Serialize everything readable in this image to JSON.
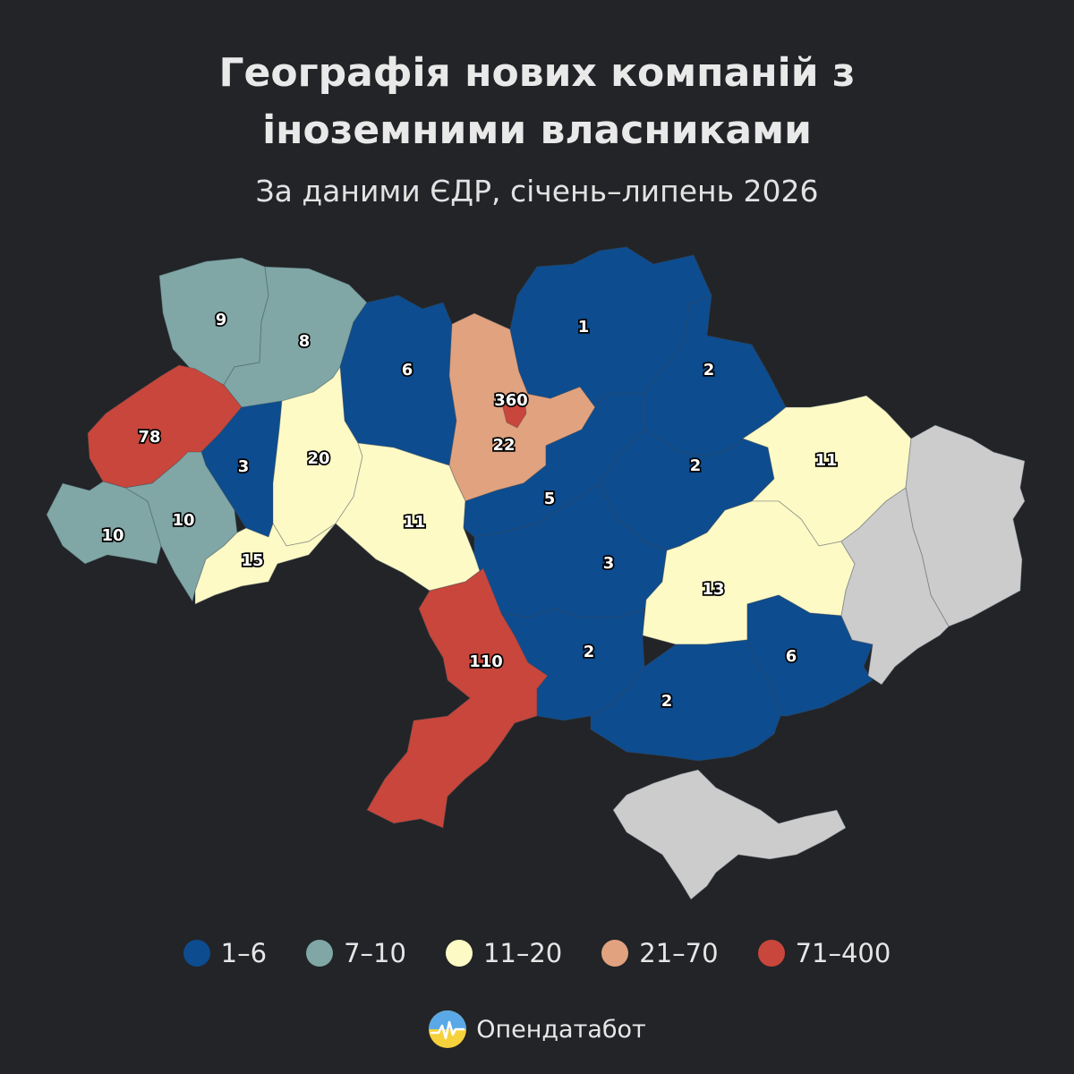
{
  "title_line1": "Географія нових компаній з",
  "title_line2": "іноземними власниками",
  "subtitle": "За даними ЄДР, січень–липень 2026",
  "colors": {
    "c1_6": "#0d4c8f",
    "c7_10": "#80a7a6",
    "c11_20": "#fdfac6",
    "c21_70": "#e1a27f",
    "c71_400": "#c8463b",
    "nodata": "#cccccc"
  },
  "regions": [
    {
      "id": "volyn",
      "value": "9",
      "bin": "c7_10"
    },
    {
      "id": "rivne",
      "value": "8",
      "bin": "c7_10"
    },
    {
      "id": "zhytomyr",
      "value": "6",
      "bin": "c1_6"
    },
    {
      "id": "kyiv-city",
      "value": "360",
      "bin": "c71_400"
    },
    {
      "id": "kyiv-oblast",
      "value": "22",
      "bin": "c21_70"
    },
    {
      "id": "chernihiv",
      "value": "1",
      "bin": "c1_6"
    },
    {
      "id": "sumy",
      "value": "2",
      "bin": "c1_6"
    },
    {
      "id": "lviv",
      "value": "78",
      "bin": "c71_400"
    },
    {
      "id": "ternopil",
      "value": "3",
      "bin": "c1_6"
    },
    {
      "id": "khmelnytskyi",
      "value": "20",
      "bin": "c11_20"
    },
    {
      "id": "vinnytsia",
      "value": "11",
      "bin": "c11_20"
    },
    {
      "id": "cherkasy",
      "value": "5",
      "bin": "c1_6"
    },
    {
      "id": "poltava",
      "value": "2",
      "bin": "c1_6"
    },
    {
      "id": "kharkiv",
      "value": "11",
      "bin": "c11_20"
    },
    {
      "id": "zakarpattia",
      "value": "10",
      "bin": "c7_10"
    },
    {
      "id": "ivano-frankivsk",
      "value": "10",
      "bin": "c7_10"
    },
    {
      "id": "chernivtsi",
      "value": "15",
      "bin": "c11_20"
    },
    {
      "id": "kirovohrad",
      "value": "3",
      "bin": "c1_6"
    },
    {
      "id": "dnipropetrovsk",
      "value": "13",
      "bin": "c11_20"
    },
    {
      "id": "odesa",
      "value": "110",
      "bin": "c71_400"
    },
    {
      "id": "mykolaiv",
      "value": "2",
      "bin": "c1_6"
    },
    {
      "id": "kherson",
      "value": "2",
      "bin": "c1_6"
    },
    {
      "id": "zaporizhzhia",
      "value": "6",
      "bin": "c1_6"
    },
    {
      "id": "luhansk",
      "value": "",
      "bin": "nodata"
    },
    {
      "id": "donetsk",
      "value": "",
      "bin": "nodata"
    },
    {
      "id": "crimea",
      "value": "",
      "bin": "nodata"
    }
  ],
  "legend": [
    {
      "label": "1–6",
      "color": "#0d4c8f"
    },
    {
      "label": "7–10",
      "color": "#80a7a6"
    },
    {
      "label": "11–20",
      "color": "#fdfac6"
    },
    {
      "label": "21–70",
      "color": "#e1a27f"
    },
    {
      "label": "71–400",
      "color": "#c8463b"
    }
  ],
  "brand": "Опендатабот"
}
